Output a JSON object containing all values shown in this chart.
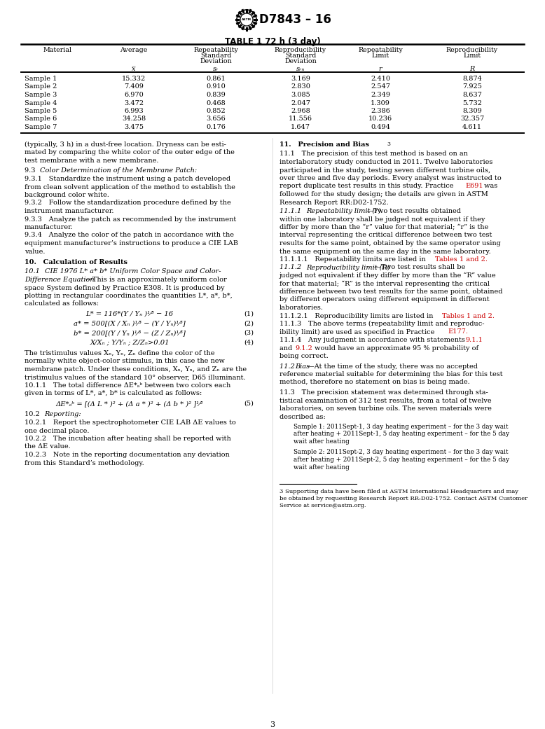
{
  "title": "D7843 – 16",
  "table_title": "TABLE 1 72 h (3 day)",
  "table_data": [
    [
      "Sample 1",
      "15.332",
      "0.861",
      "3.169",
      "2.410",
      "8.874"
    ],
    [
      "Sample 2",
      "7.409",
      "0.910",
      "2.830",
      "2.547",
      "7.925"
    ],
    [
      "Sample 3",
      "6.970",
      "0.839",
      "3.085",
      "2.349",
      "8.637"
    ],
    [
      "Sample 4",
      "3.472",
      "0.468",
      "2.047",
      "1.309",
      "5.732"
    ],
    [
      "Sample 5",
      "6.993",
      "0.852",
      "2.968",
      "2.386",
      "8.309"
    ],
    [
      "Sample 6",
      "34.258",
      "3.656",
      "11.556",
      "10.236",
      "32.357"
    ],
    [
      "Sample 7",
      "3.475",
      "0.176",
      "1.647",
      "0.494",
      "4.611"
    ]
  ],
  "page_number": "3",
  "bg_color": "#ffffff",
  "text_color": "#000000",
  "red_color": "#cc0000"
}
